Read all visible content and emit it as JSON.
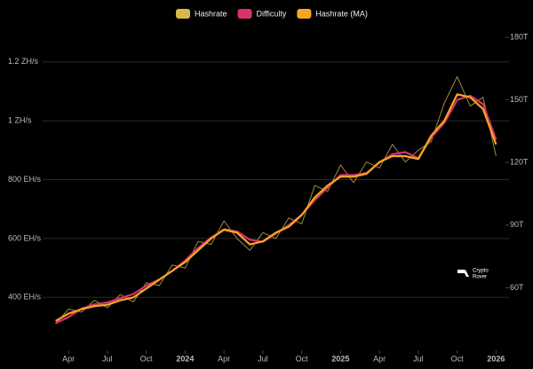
{
  "chart_data": {
    "type": "line",
    "x": [
      "2023-03",
      "2023-04",
      "2023-05",
      "2023-06",
      "2023-07",
      "2023-08",
      "2023-09",
      "2023-10",
      "2023-11",
      "2023-12",
      "2024-01",
      "2024-02",
      "2024-03",
      "2024-04",
      "2024-05",
      "2024-06",
      "2024-07",
      "2024-08",
      "2024-09",
      "2024-10",
      "2024-11",
      "2024-12",
      "2025-01",
      "2025-02",
      "2025-03",
      "2025-04",
      "2025-05",
      "2025-06",
      "2025-07",
      "2025-08",
      "2025-09",
      "2025-10",
      "2025-11",
      "2025-12",
      "2026-01"
    ],
    "series": [
      {
        "name": "Hashrate",
        "color": "#d9b84a",
        "axis": "y",
        "values": [
          310,
          360,
          350,
          390,
          365,
          410,
          385,
          450,
          440,
          510,
          500,
          590,
          580,
          660,
          600,
          560,
          620,
          600,
          670,
          650,
          780,
          760,
          850,
          790,
          860,
          840,
          920,
          860,
          900,
          930,
          1060,
          1150,
          1050,
          1080,
          880
        ]
      },
      {
        "name": "Difficulty",
        "color": "#d6336c",
        "axis": "y2",
        "values": [
          43,
          46,
          50,
          52,
          53,
          55,
          57,
          61,
          64,
          68,
          73,
          79,
          84,
          88,
          87,
          83,
          82,
          86,
          90,
          95,
          102,
          108,
          114,
          114,
          115,
          120,
          124,
          125,
          122,
          132,
          139,
          150,
          152,
          148,
          131
        ]
      },
      {
        "name": "Hashrate (MA)",
        "color": "#f5a623",
        "axis": "y",
        "values": [
          320,
          345,
          360,
          370,
          375,
          390,
          400,
          430,
          460,
          490,
          520,
          560,
          600,
          630,
          620,
          580,
          590,
          620,
          640,
          680,
          740,
          780,
          810,
          810,
          820,
          860,
          880,
          880,
          870,
          950,
          1000,
          1090,
          1080,
          1040,
          920
        ]
      }
    ],
    "xlim": [
      "2023-02",
      "2026-02"
    ],
    "xticks": [
      {
        "value": "2023-04",
        "label": "Apr"
      },
      {
        "value": "2023-07",
        "label": "Jul"
      },
      {
        "value": "2023-10",
        "label": "Oct"
      },
      {
        "value": "2024-01",
        "label": "2024"
      },
      {
        "value": "2024-04",
        "label": "Apr"
      },
      {
        "value": "2024-07",
        "label": "Jul"
      },
      {
        "value": "2024-10",
        "label": "Oct"
      },
      {
        "value": "2025-01",
        "label": "2025"
      },
      {
        "value": "2025-04",
        "label": "Apr"
      },
      {
        "value": "2025-07",
        "label": "Jul"
      },
      {
        "value": "2025-10",
        "label": "Oct"
      },
      {
        "value": "2026-01",
        "label": "2026"
      }
    ],
    "ylim": [
      220,
      1305
    ],
    "yticks": [
      {
        "value": 400,
        "label": "400 EH/s"
      },
      {
        "value": 600,
        "label": "600 EH/s"
      },
      {
        "value": 800,
        "label": "800 EH/s"
      },
      {
        "value": 1000,
        "label": "1 ZH/s"
      },
      {
        "value": 1200,
        "label": "1.2 ZH/s"
      }
    ],
    "y2lim": [
      30,
      183
    ],
    "y2ticks": [
      {
        "value": 60,
        "label": "60T"
      },
      {
        "value": 90,
        "label": "90T"
      },
      {
        "value": 120,
        "label": "120T"
      },
      {
        "value": 150,
        "label": "150T"
      },
      {
        "value": 180,
        "label": "180T"
      }
    ],
    "grid": true,
    "watermark": [
      "Crypto",
      "Rover"
    ]
  }
}
